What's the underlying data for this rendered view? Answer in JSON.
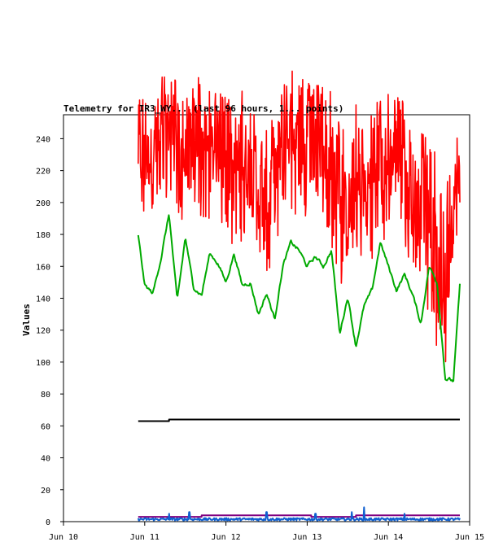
{
  "chart_data": {
    "type": "line",
    "title": "Telemetry for IR3_WY... (last 96 hours, 1... points)",
    "xlabel": "",
    "ylabel": "Values",
    "xlim": [
      "Jun 10",
      "Jun 15"
    ],
    "ylim": [
      0,
      255
    ],
    "x_ticks": [
      "Jun 10",
      "Jun 11",
      "Jun 12",
      "Jun 13",
      "Jun 14",
      "Jun 15"
    ],
    "y_ticks": [
      0,
      20,
      40,
      60,
      80,
      100,
      120,
      140,
      160,
      180,
      200,
      220,
      240
    ],
    "grid": false,
    "legend": "none",
    "x_unit": "days since Jun 10 00:00",
    "series": [
      {
        "color": "#ff0000",
        "style": "noisy",
        "x": [
          0.92,
          1.0,
          1.1,
          1.2,
          1.3,
          1.4,
          1.5,
          1.6,
          1.7,
          1.8,
          1.9,
          2.0,
          2.1,
          2.2,
          2.3,
          2.4,
          2.5,
          2.6,
          2.7,
          2.8,
          2.9,
          3.0,
          3.1,
          3.2,
          3.3,
          3.4,
          3.5,
          3.6,
          3.7,
          3.8,
          3.9,
          4.0,
          4.1,
          4.2,
          4.3,
          4.4,
          4.5,
          4.6,
          4.7,
          4.8,
          4.88
        ],
        "y": [
          235,
          225,
          230,
          240,
          250,
          238,
          225,
          245,
          240,
          230,
          235,
          225,
          218,
          230,
          220,
          208,
          200,
          215,
          240,
          245,
          235,
          238,
          232,
          228,
          225,
          200,
          190,
          210,
          205,
          215,
          220,
          225,
          230,
          218,
          205,
          195,
          185,
          160,
          140,
          200,
          210
        ],
        "low": [
          185,
          190,
          195,
          200,
          205,
          190,
          185,
          200,
          190,
          185,
          185,
          180,
          170,
          175,
          165,
          160,
          150,
          160,
          190,
          195,
          190,
          185,
          180,
          175,
          170,
          150,
          140,
          160,
          160,
          165,
          170,
          175,
          175,
          165,
          155,
          145,
          130,
          105,
          95,
          150,
          165
        ],
        "high": [
          285,
          268,
          262,
          282,
          286,
          276,
          270,
          282,
          278,
          272,
          270,
          268,
          260,
          270,
          262,
          252,
          248,
          262,
          282,
          285,
          282,
          280,
          276,
          272,
          270,
          250,
          242,
          262,
          256,
          262,
          266,
          270,
          272,
          262,
          252,
          245,
          238,
          230,
          205,
          252,
          255
        ]
      },
      {
        "color": "#00aa00",
        "style": "smooth",
        "x": [
          0.92,
          1.0,
          1.1,
          1.2,
          1.3,
          1.4,
          1.5,
          1.6,
          1.7,
          1.8,
          1.9,
          2.0,
          2.1,
          2.2,
          2.3,
          2.4,
          2.5,
          2.6,
          2.7,
          2.8,
          2.9,
          3.0,
          3.1,
          3.2,
          3.3,
          3.4,
          3.5,
          3.6,
          3.7,
          3.8,
          3.9,
          4.0,
          4.1,
          4.2,
          4.3,
          4.4,
          4.5,
          4.6,
          4.7,
          4.8,
          4.88
        ],
        "y": [
          179,
          148,
          143,
          165,
          193,
          138,
          178,
          147,
          142,
          168,
          162,
          150,
          168,
          148,
          150,
          130,
          143,
          127,
          160,
          175,
          170,
          160,
          166,
          160,
          170,
          118,
          141,
          110,
          135,
          145,
          175,
          160,
          145,
          155,
          142,
          124,
          160,
          150,
          90,
          88,
          148
        ]
      },
      {
        "color": "#000000",
        "style": "step",
        "x": [
          0.92,
          1.3,
          1.3,
          4.88
        ],
        "y": [
          63,
          63,
          64,
          64
        ]
      },
      {
        "color": "#800080",
        "style": "step",
        "x": [
          0.92,
          1.7,
          1.7,
          2.5,
          2.5,
          3.05,
          3.05,
          3.6,
          3.6,
          4.88
        ],
        "y": [
          3,
          3,
          4,
          4,
          4,
          4,
          3,
          3,
          4,
          4
        ]
      },
      {
        "color": "#1060d0",
        "style": "low-noise",
        "x": [
          0.92,
          4.88
        ],
        "y": [
          1.5,
          1.5
        ],
        "spikes": [
          [
            1.3,
            5
          ],
          [
            1.55,
            6
          ],
          [
            2.5,
            6
          ],
          [
            3.1,
            5
          ],
          [
            3.55,
            6
          ],
          [
            3.7,
            9
          ],
          [
            4.2,
            5
          ]
        ]
      }
    ]
  }
}
